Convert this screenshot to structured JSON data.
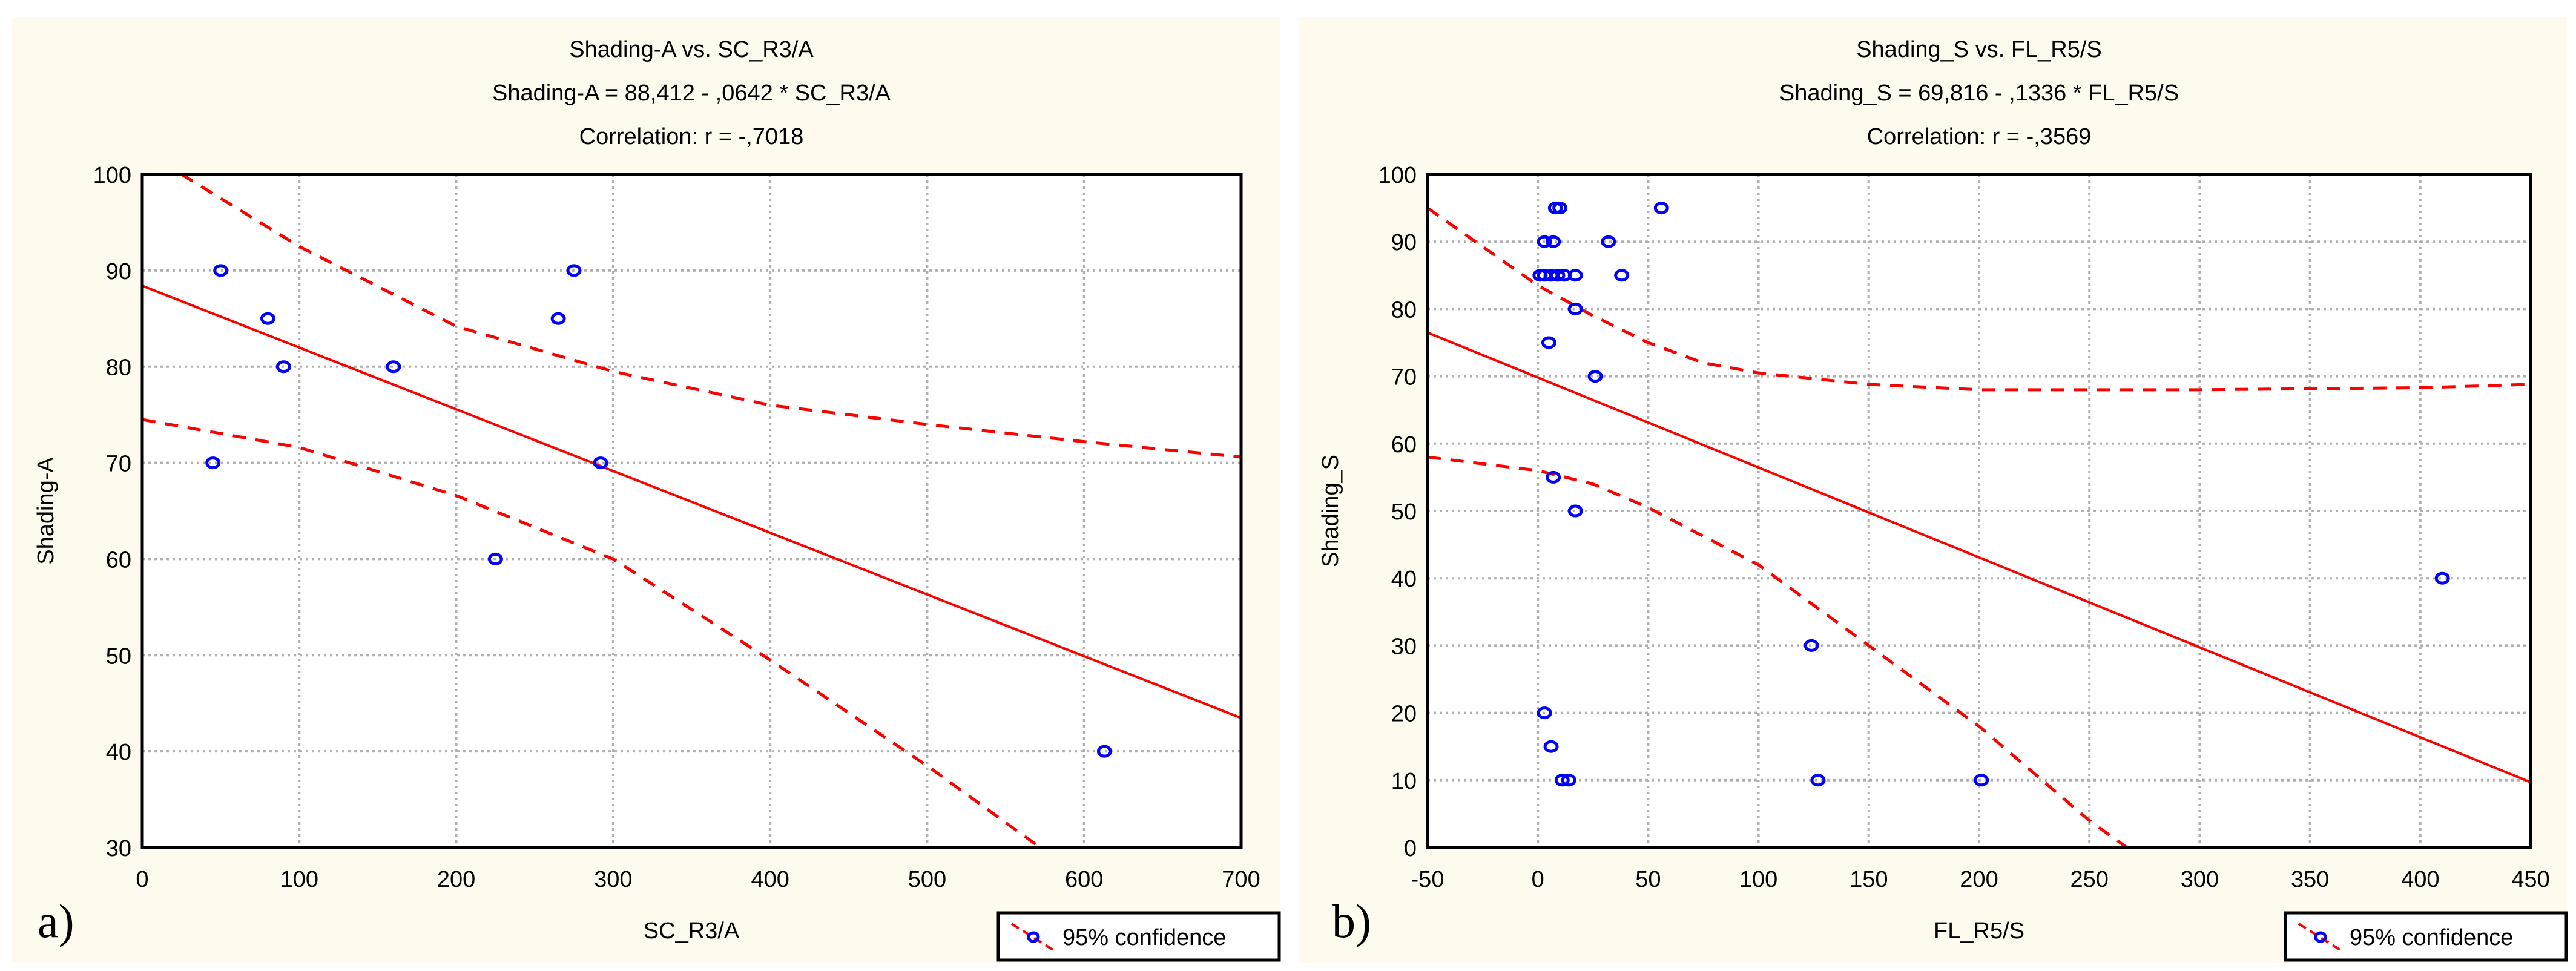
{
  "colors": {
    "background": "#fffaee",
    "points": "#0000ff",
    "fit": "#ff0000",
    "grid": "#b0b0b0"
  },
  "chart_data": [
    {
      "type": "scatter",
      "panel_label": "a)",
      "title": "Shading-A vs. SC_R3/A",
      "equation": "Shading-A = 88,412 - ,0642  * SC_R3/A",
      "correlation": "Correlation: r = -,7018",
      "xlabel": "SC_R3/A",
      "ylabel": "Shading-A",
      "xlim": [
        0,
        700
      ],
      "ylim": [
        30,
        100
      ],
      "xticks": [
        0,
        100,
        200,
        300,
        400,
        500,
        600,
        700
      ],
      "yticks": [
        30,
        40,
        50,
        60,
        70,
        80,
        90,
        100
      ],
      "grid": true,
      "fit": {
        "intercept": 88.412,
        "slope": -0.0642
      },
      "upper_band": [
        [
          25,
          100
        ],
        [
          100,
          92.5
        ],
        [
          200,
          84.2
        ],
        [
          300,
          79.5
        ],
        [
          400,
          76
        ],
        [
          500,
          74
        ],
        [
          600,
          72.2
        ],
        [
          700,
          70.6
        ]
      ],
      "lower_band": [
        [
          0,
          74.5
        ],
        [
          100,
          71.6
        ],
        [
          200,
          66.6
        ],
        [
          300,
          60
        ],
        [
          400,
          49.5
        ],
        [
          500,
          38.5
        ],
        [
          572,
          30
        ]
      ],
      "points": [
        [
          45,
          70
        ],
        [
          50,
          90
        ],
        [
          80,
          85
        ],
        [
          90,
          80
        ],
        [
          160,
          80
        ],
        [
          225,
          60
        ],
        [
          265,
          85
        ],
        [
          275,
          90
        ],
        [
          292,
          70
        ],
        [
          613,
          40
        ]
      ],
      "legend": {
        "label": "95% confidence",
        "position": "bottom-right"
      }
    },
    {
      "type": "scatter",
      "panel_label": "b)",
      "title": "Shading_S vs. FL_R5/S",
      "equation": "Shading_S = 69,816 - ,1336  * FL_R5/S",
      "correlation": "Correlation: r = -,3569",
      "xlabel": "FL_R5/S",
      "ylabel": "Shading_S",
      "xlim": [
        -50,
        450
      ],
      "ylim": [
        0,
        100
      ],
      "xticks": [
        -50,
        0,
        50,
        100,
        150,
        200,
        250,
        300,
        350,
        400,
        450
      ],
      "yticks": [
        0,
        10,
        20,
        30,
        40,
        50,
        60,
        70,
        80,
        90,
        100
      ],
      "grid": true,
      "fit": {
        "intercept": 69.816,
        "slope": -0.1336
      },
      "upper_band": [
        [
          -50,
          95
        ],
        [
          0,
          83.5
        ],
        [
          25,
          79
        ],
        [
          50,
          75
        ],
        [
          75,
          72
        ],
        [
          100,
          70.5
        ],
        [
          150,
          68.8
        ],
        [
          200,
          68
        ],
        [
          300,
          68
        ],
        [
          400,
          68.3
        ],
        [
          450,
          68.8
        ]
      ],
      "lower_band": [
        [
          -50,
          58
        ],
        [
          0,
          56
        ],
        [
          25,
          54
        ],
        [
          50,
          50.5
        ],
        [
          100,
          42
        ],
        [
          150,
          30
        ],
        [
          200,
          18
        ],
        [
          250,
          4
        ],
        [
          267,
          0
        ]
      ],
      "points": [
        [
          8,
          95
        ],
        [
          10,
          95
        ],
        [
          56,
          95
        ],
        [
          3,
          90
        ],
        [
          7,
          90
        ],
        [
          32,
          90
        ],
        [
          1,
          85
        ],
        [
          3,
          85
        ],
        [
          6,
          85
        ],
        [
          9,
          85
        ],
        [
          12,
          85
        ],
        [
          17,
          85
        ],
        [
          38,
          85
        ],
        [
          17,
          80
        ],
        [
          5,
          75
        ],
        [
          26,
          70
        ],
        [
          7,
          55
        ],
        [
          17,
          50
        ],
        [
          410,
          40
        ],
        [
          124,
          30
        ],
        [
          3,
          20
        ],
        [
          6,
          15
        ],
        [
          11,
          10
        ],
        [
          14,
          10
        ],
        [
          127,
          10
        ],
        [
          201,
          10
        ]
      ],
      "legend": {
        "label": "95% confidence",
        "position": "bottom-right"
      }
    }
  ]
}
